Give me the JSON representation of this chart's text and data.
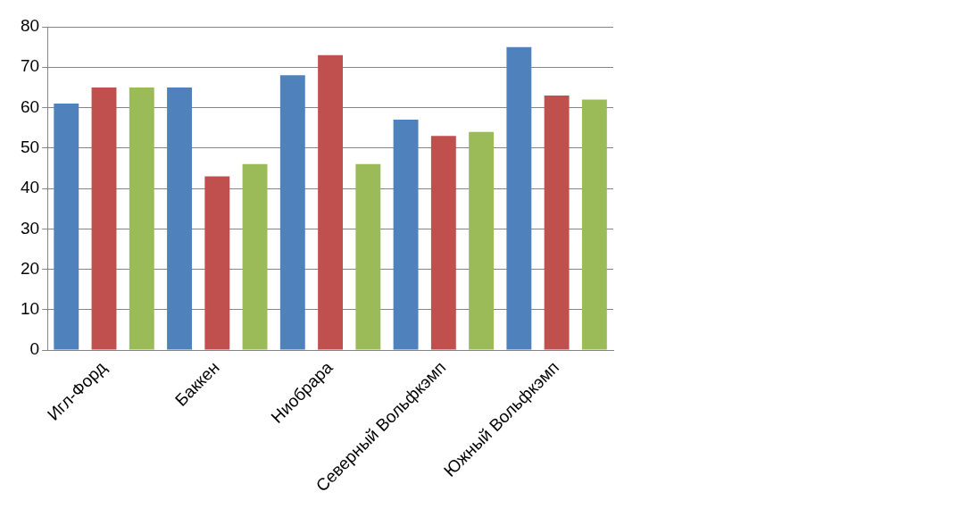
{
  "chart_data": {
    "type": "bar",
    "categories": [
      "Игл-Форд",
      "Баккен",
      "Ниобрара",
      "Северный Вольфкэмп",
      "Южный Вольфкэмп"
    ],
    "series": [
      {
        "color": "#4f81bd",
        "values": [
          61,
          65,
          68,
          57,
          75
        ]
      },
      {
        "color": "#c0504d",
        "values": [
          65,
          43,
          73,
          53,
          63
        ]
      },
      {
        "color": "#9bbb59",
        "values": [
          65,
          46,
          46,
          54,
          62
        ]
      }
    ],
    "ylim": [
      0,
      80
    ],
    "yticks": [
      0,
      10,
      20,
      30,
      40,
      50,
      60,
      70,
      80
    ],
    "grid": "y"
  }
}
